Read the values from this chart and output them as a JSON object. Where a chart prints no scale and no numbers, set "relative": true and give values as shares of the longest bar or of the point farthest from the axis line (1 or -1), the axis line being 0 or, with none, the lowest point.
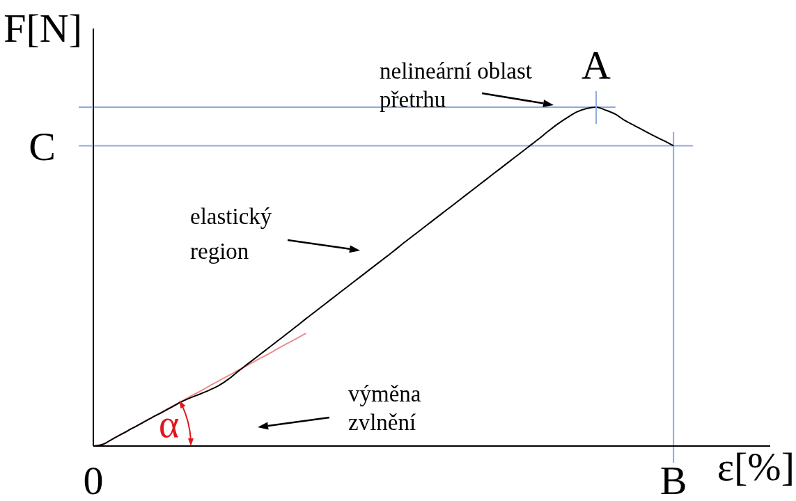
{
  "chart_data": {
    "type": "line",
    "xlabel": "ε[%]",
    "ylabel": "F[N]",
    "relative": true,
    "tick_labels": "x",
    "categories": [
      "0",
      null,
      null,
      null,
      null,
      null,
      null,
      null,
      null,
      null,
      null,
      null,
      null,
      null,
      null,
      null,
      null,
      null,
      null,
      null,
      null,
      null,
      null,
      null,
      null,
      null,
      null,
      null,
      null,
      null,
      null,
      null,
      null,
      null,
      null,
      null,
      null,
      null,
      null,
      null,
      null,
      null,
      null,
      null,
      null,
      null,
      null,
      null,
      null,
      null,
      null,
      null,
      null,
      null,
      null,
      null,
      null,
      null,
      null,
      null,
      "B",
      null,
      null,
      null,
      null,
      null,
      null,
      null,
      null,
      null,
      null
    ],
    "series": [
      {
        "color": "#000000",
        "values": [
          0,
          0.005,
          0.021,
          0.036,
          0.052,
          0.067,
          0.083,
          0.098,
          0.113,
          0.129,
          0.142,
          0.153,
          0.165,
          0.179,
          0.198,
          0.221,
          0.243,
          0.265,
          0.287,
          0.309,
          0.331,
          0.353,
          0.376,
          0.398,
          0.42,
          0.442,
          0.464,
          0.486,
          0.508,
          0.53,
          0.552,
          0.574,
          0.597,
          0.619,
          0.641,
          0.663,
          0.685,
          0.707,
          0.729,
          0.751,
          0.773,
          0.795,
          0.817,
          0.839,
          0.861,
          0.883,
          0.905,
          0.928,
          0.95,
          0.969,
          0.986,
          0.996,
          1,
          0.991,
          0.979,
          0.96,
          0.945,
          0.93,
          0.915,
          0.901,
          0.886,
          null,
          null,
          null,
          null,
          null,
          null,
          null,
          null,
          null,
          null
        ]
      },
      {
        "type": "line",
        "color": "#f08c8c",
        "values": [
          0,
          0.005,
          0.021,
          0.037,
          0.052,
          0.068,
          0.083,
          0.099,
          0.115,
          0.13,
          0.146,
          0.161,
          0.177,
          0.193,
          0.208,
          0.224,
          0.239,
          0.255,
          0.27,
          0.286,
          0.302,
          0.317,
          0.333,
          null,
          null,
          null,
          null,
          null,
          null,
          null,
          null,
          null,
          null,
          null,
          null,
          null,
          null,
          null,
          null,
          null,
          null,
          null,
          null,
          null,
          null,
          null,
          null,
          null,
          null,
          null,
          null,
          null,
          null,
          null,
          null,
          null,
          null,
          null,
          null,
          null,
          null,
          null,
          null,
          null,
          null,
          null,
          null,
          null,
          null,
          null,
          null
        ]
      },
      {
        "color": "#8faadc",
        "values": [
          1,
          1,
          1,
          1,
          1,
          1,
          1,
          1,
          1,
          1,
          1,
          1,
          1,
          1,
          1,
          1,
          1,
          1,
          1,
          1,
          1,
          1,
          1,
          1,
          1,
          1,
          1,
          1,
          1,
          1,
          1,
          1,
          1,
          1,
          1,
          1,
          1,
          1,
          1,
          1,
          1,
          1,
          1,
          1,
          1,
          1,
          1,
          1,
          1,
          1,
          1,
          1,
          1,
          1,
          1,
          null,
          null,
          null,
          null,
          null,
          null,
          null,
          null,
          null,
          null,
          null,
          null,
          null,
          null,
          null,
          null
        ]
      },
      {
        "name": "C",
        "color": "#8faadc",
        "values": [
          0.886,
          0.886,
          0.886,
          0.886,
          0.886,
          0.886,
          0.886,
          0.886,
          0.886,
          0.886,
          0.886,
          0.886,
          0.886,
          0.886,
          0.886,
          0.886,
          0.886,
          0.886,
          0.886,
          0.886,
          0.886,
          0.886,
          0.886,
          0.886,
          0.886,
          0.886,
          0.886,
          0.886,
          0.886,
          0.886,
          0.886,
          0.886,
          0.886,
          0.886,
          0.886,
          0.886,
          0.886,
          0.886,
          0.886,
          0.886,
          0.886,
          0.886,
          0.886,
          0.886,
          0.886,
          0.886,
          0.886,
          0.886,
          0.886,
          0.886,
          0.886,
          0.886,
          0.886,
          0.886,
          0.886,
          0.886,
          0.886,
          0.886,
          0.886,
          0.886,
          0.886,
          0.886,
          0.886,
          null,
          null,
          null,
          null,
          null,
          null,
          null,
          null
        ]
      }
    ],
    "ref_lines": [
      {
        "axis": "x",
        "value": "B",
        "color": "#8faadc"
      }
    ],
    "annotations": [
      "A",
      "nelineární oblast\npřetrhu",
      "elastický\nregion",
      "výměna\nzvlnění",
      "α"
    ]
  }
}
